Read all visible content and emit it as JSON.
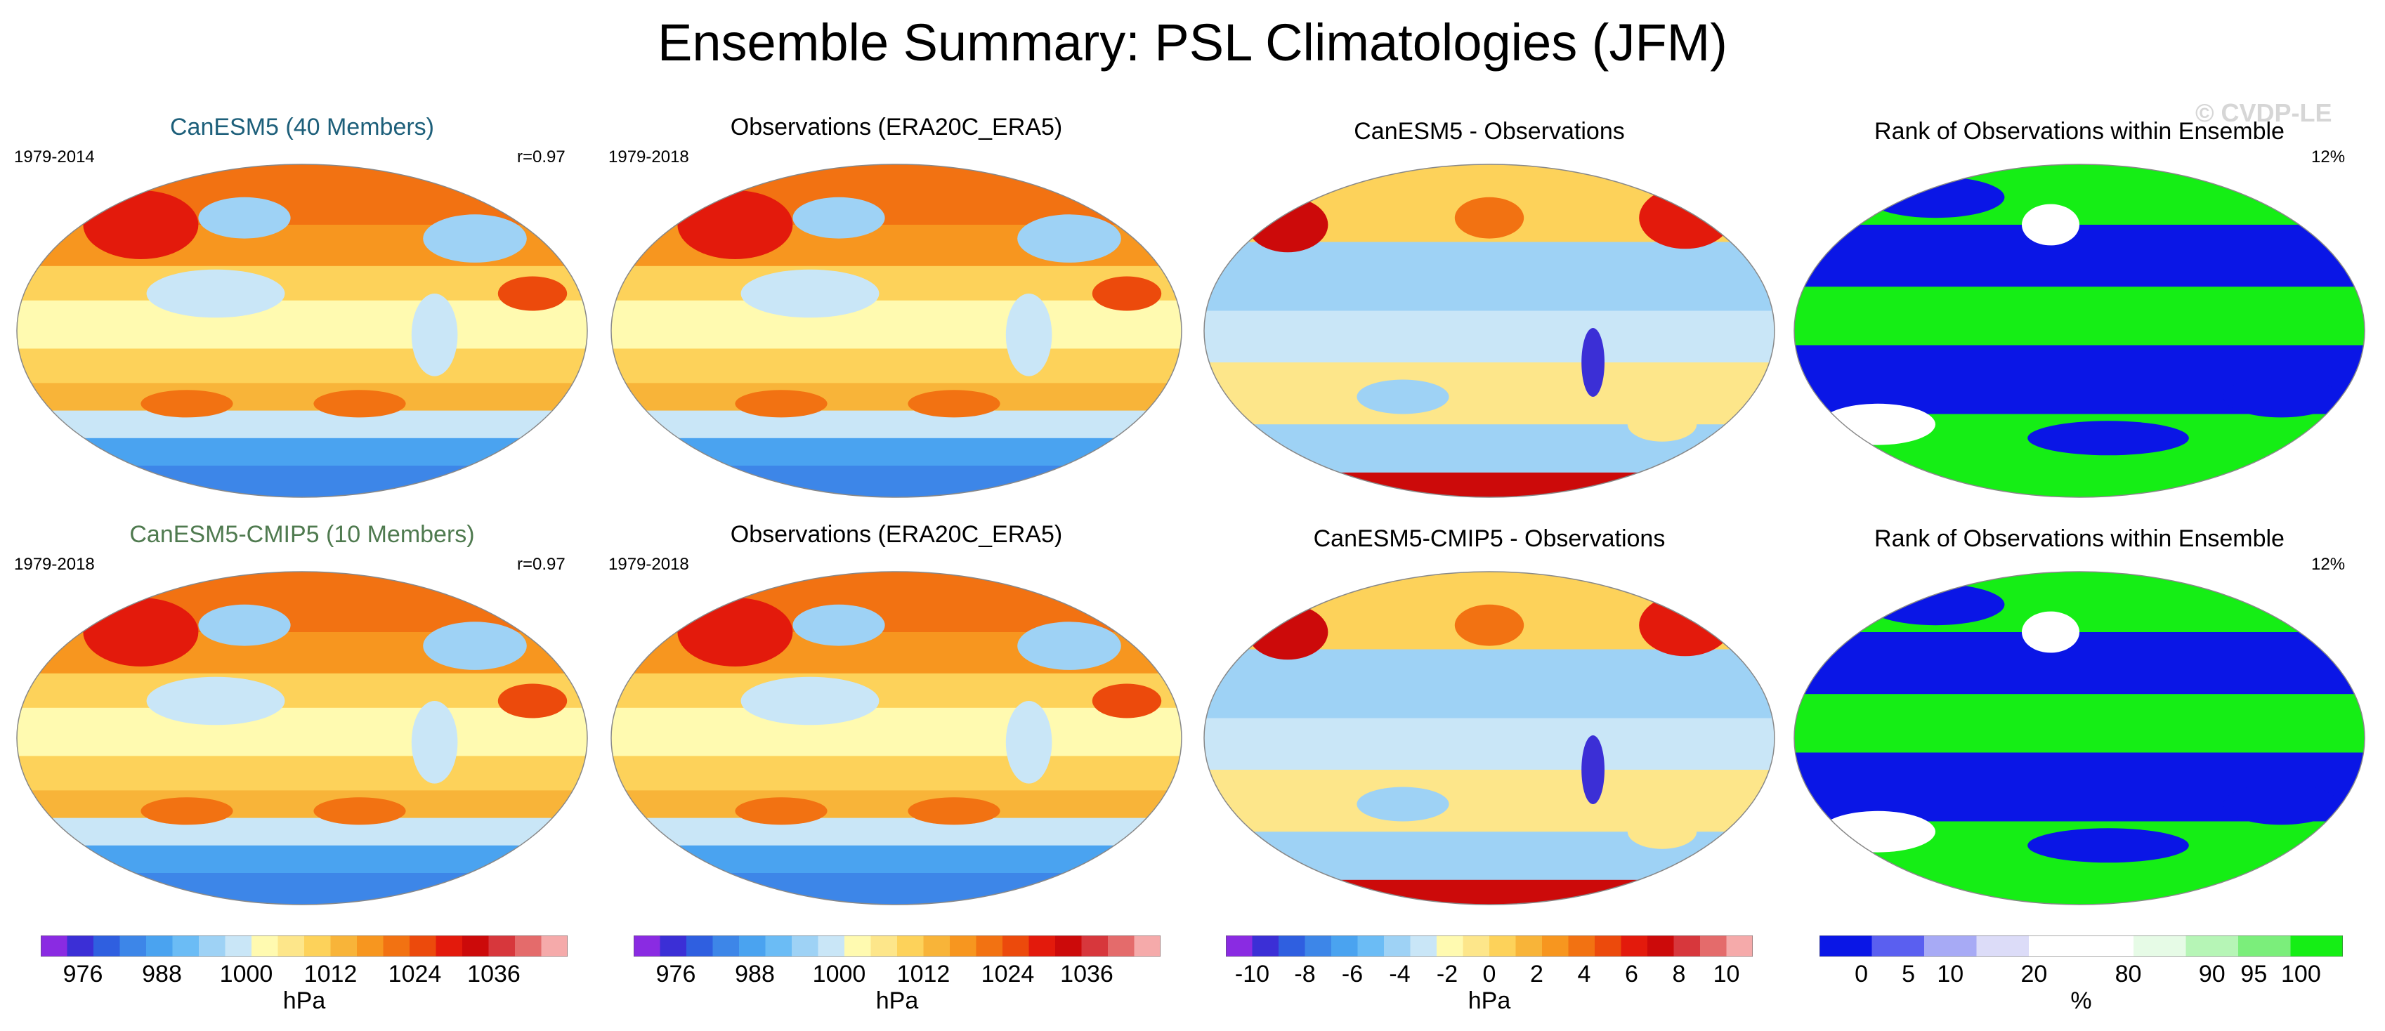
{
  "figure": {
    "title": "Ensemble Summary: PSL Climatologies (JFM)",
    "watermark": "© CVDP-LE"
  },
  "colors": {
    "psl_scale": [
      "#8a2be2",
      "#3b2fd6",
      "#2f5fe0",
      "#3d86e8",
      "#4aa3f0",
      "#6bbcf5",
      "#9ed2f5",
      "#c9e6f7",
      "#fffab0",
      "#fde68a",
      "#fdd25a",
      "#f8b439",
      "#f7961f",
      "#f27212",
      "#ec4a0c",
      "#e31a0c",
      "#cc0a0a",
      "#d7373c",
      "#e46b6b",
      "#f5aaaa"
    ],
    "rank_scale": [
      "#0a16e6",
      "#5a5ff0",
      "#a7aaf5",
      "#dcdcf8",
      "#ffffff",
      "#ffffff",
      "#e6fbe6",
      "#b6f5b6",
      "#7bee7b",
      "#15ee15"
    ]
  },
  "chart_data": [
    {
      "type": "heatmap",
      "title": "CanESM5 (40 Members)",
      "title_color": "#1d5f7a",
      "period": "1979-2014",
      "stat": "r=0.97"
    },
    {
      "type": "heatmap",
      "title": "Observations (ERA20C_ERA5)",
      "title_color": "#000000",
      "period": "1979-2018",
      "stat": ""
    },
    {
      "type": "heatmap",
      "title": "CanESM5 - Observations",
      "title_color": "#000000",
      "period": "",
      "stat": ""
    },
    {
      "type": "heatmap",
      "title": "Rank of Observations within Ensemble",
      "title_color": "#000000",
      "period": "",
      "stat": "12%"
    },
    {
      "type": "heatmap",
      "title": "CanESM5-CMIP5 (10 Members)",
      "title_color": "#4f7a4f",
      "period": "1979-2018",
      "stat": "r=0.97"
    },
    {
      "type": "heatmap",
      "title": "Observations (ERA20C_ERA5)",
      "title_color": "#000000",
      "period": "1979-2018",
      "stat": ""
    },
    {
      "type": "heatmap",
      "title": "CanESM5-CMIP5 - Observations",
      "title_color": "#000000",
      "period": "",
      "stat": ""
    },
    {
      "type": "heatmap",
      "title": "Rank of Observations within Ensemble",
      "title_color": "#000000",
      "period": "",
      "stat": "12%"
    }
  ],
  "colorbars": [
    {
      "unit": "hPa",
      "ticks": [
        "976",
        "988",
        "1000",
        "1012",
        "1024",
        "1036"
      ]
    },
    {
      "unit": "hPa",
      "ticks": [
        "976",
        "988",
        "1000",
        "1012",
        "1024",
        "1036"
      ]
    },
    {
      "unit": "hPa",
      "ticks": [
        "-10",
        "-8",
        "-6",
        "-4",
        "-2",
        "0",
        "2",
        "4",
        "6",
        "8",
        "10"
      ]
    },
    {
      "unit": "%",
      "ticks": [
        "0",
        "5",
        "10",
        "20",
        "80",
        "90",
        "95",
        "100"
      ]
    }
  ]
}
